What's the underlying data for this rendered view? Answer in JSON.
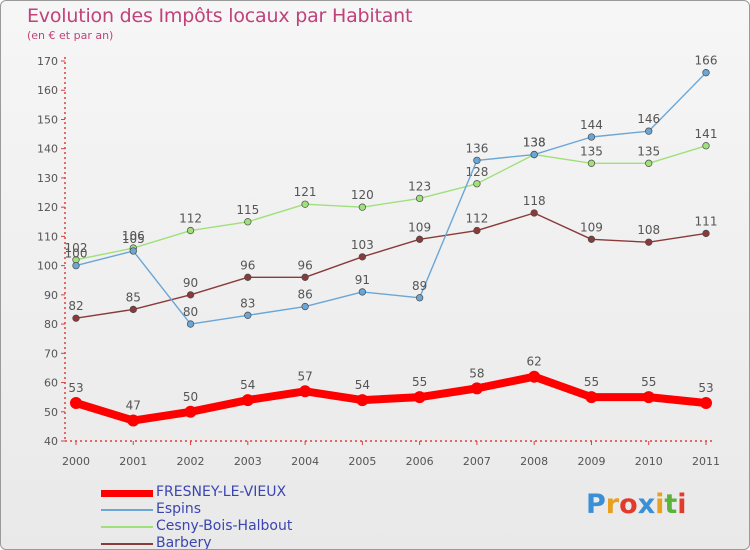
{
  "title": "Evolution des Impôts locaux par Habitant",
  "subtitle": "(en € et par an)",
  "logo": {
    "text": "Proxiti",
    "colors": [
      "#3a8fd6",
      "#e8a020",
      "#e23b2c",
      "#3a8fd6",
      "#e8a020",
      "#5ab43c",
      "#e23b2c"
    ]
  },
  "chart_data": {
    "type": "line",
    "title": "Evolution des Impôts locaux par Habitant",
    "subtitle": "(en € et par an)",
    "xlabel": "",
    "ylabel": "",
    "categories": [
      "2000",
      "2001",
      "2002",
      "2003",
      "2004",
      "2005",
      "2006",
      "2007",
      "2008",
      "2009",
      "2010",
      "2011"
    ],
    "yticks": [
      "40",
      "50",
      "60",
      "70",
      "80",
      "90",
      "100",
      "110",
      "120",
      "130",
      "140",
      "150",
      "160",
      "170"
    ],
    "ylim": [
      40,
      170
    ],
    "grid": false,
    "legend_position": "bottom-left",
    "series": [
      {
        "name": "FRESNEY-LE-VIEUX",
        "color": "#ff0000",
        "values": [
          53,
          47,
          50,
          54,
          57,
          54,
          55,
          58,
          62,
          55,
          55,
          53
        ],
        "labels": [
          "53",
          "47",
          "50",
          "54",
          "57",
          "54",
          "55",
          "58",
          "62",
          "55",
          "55",
          "53"
        ]
      },
      {
        "name": "Espins",
        "color": "#6aa6d6",
        "values": [
          100,
          105,
          80,
          83,
          86,
          91,
          89,
          136,
          138,
          144,
          146,
          166
        ],
        "labels": [
          "100",
          "105",
          "80",
          "83",
          "86",
          "91",
          "89",
          "136",
          "138",
          "144",
          "146",
          "166"
        ]
      },
      {
        "name": "Cesny-Bois-Halbout",
        "color": "#9fe07a",
        "values": [
          102,
          106,
          112,
          115,
          121,
          120,
          123,
          128,
          138,
          135,
          135,
          141
        ],
        "labels": [
          "102",
          "106",
          "112",
          "115",
          "121",
          "120",
          "123",
          "128",
          "138",
          "135",
          "135",
          "141"
        ]
      },
      {
        "name": "Barbery",
        "color": "#8b3a3a",
        "values": [
          82,
          85,
          90,
          96,
          96,
          103,
          109,
          112,
          118,
          109,
          108,
          111
        ],
        "labels": [
          "82",
          "85",
          "90",
          "96",
          "96",
          "103",
          "109",
          "112",
          "118",
          "109",
          "108",
          "111"
        ]
      }
    ]
  }
}
